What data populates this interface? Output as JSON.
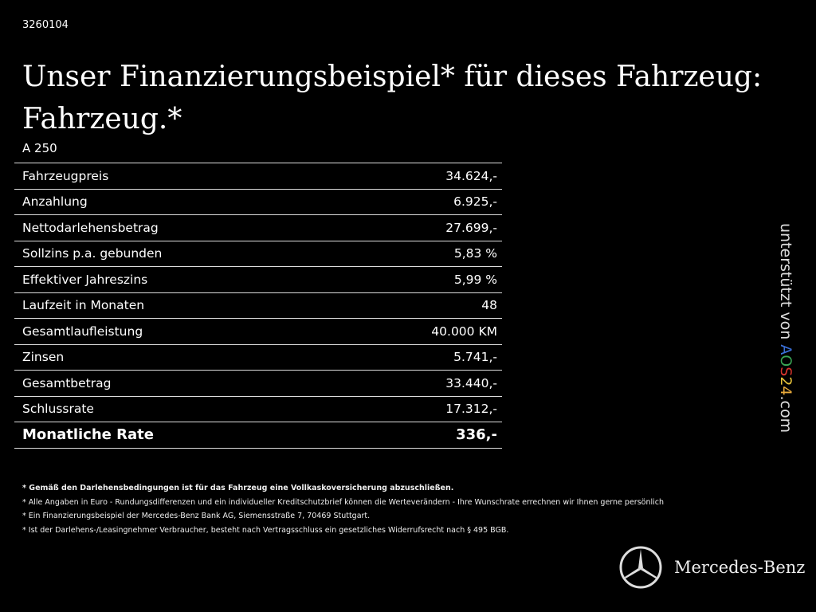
{
  "id": "3260104",
  "title_line1": "Unser Finanzierungsbeispiel* für dieses Fahrzeug:",
  "title_line2": "Fahrzeug.*",
  "model": "A 250",
  "rows": [
    {
      "label": "Fahrzeugpreis",
      "value": "34.624,-"
    },
    {
      "label": "Anzahlung",
      "value": "6.925,-"
    },
    {
      "label": "Nettodarlehensbetrag",
      "value": "27.699,-"
    },
    {
      "label": "Sollzins p.a. gebunden",
      "value": "5,83 %"
    },
    {
      "label": "Effektiver Jahreszins",
      "value": "5,99 %"
    },
    {
      "label": "Laufzeit in Monaten",
      "value": "48"
    },
    {
      "label": "Gesamtlaufleistung",
      "value": "40.000 KM"
    },
    {
      "label": "Zinsen",
      "value": "5.741,-"
    },
    {
      "label": "Gesamtbetrag",
      "value": "33.440,-"
    },
    {
      "label": "Schlussrate",
      "value": "17.312,-"
    },
    {
      "label": "Monatliche Rate",
      "value": "336,-"
    }
  ],
  "notes": [
    "* Gemäß den Darlehensbedingungen ist für das Fahrzeug eine Vollkaskoversicherung abzuschließen.",
    "* Alle Angaben in Euro - Rundungsdifferenzen und ein individueller Kreditschutzbrief können die Werteverändern - Ihre Wunschrate errechnen wir Ihnen gerne persönlich",
    "* Ein Finanzierungsbeispiel der Mercedes-Benz Bank AG, Siemensstraße 7, 70469 Stuttgart.",
    "* Ist der Darlehens-/Leasingnehmer Verbraucher, besteht nach Vertragsschluss ein gesetzliches Widerrufsrecht nach § 495 BGB."
  ],
  "sponsor": {
    "prefix": "unterstützt von ",
    "letters": [
      "A",
      "O",
      "S",
      "2",
      "4"
    ],
    "colors": [
      "#3a6fd8",
      "#3aa655",
      "#d8342c",
      "#e8c33a",
      "#e8a93a"
    ],
    "suffix": ".com"
  },
  "brand": "Mercedes-Benz"
}
